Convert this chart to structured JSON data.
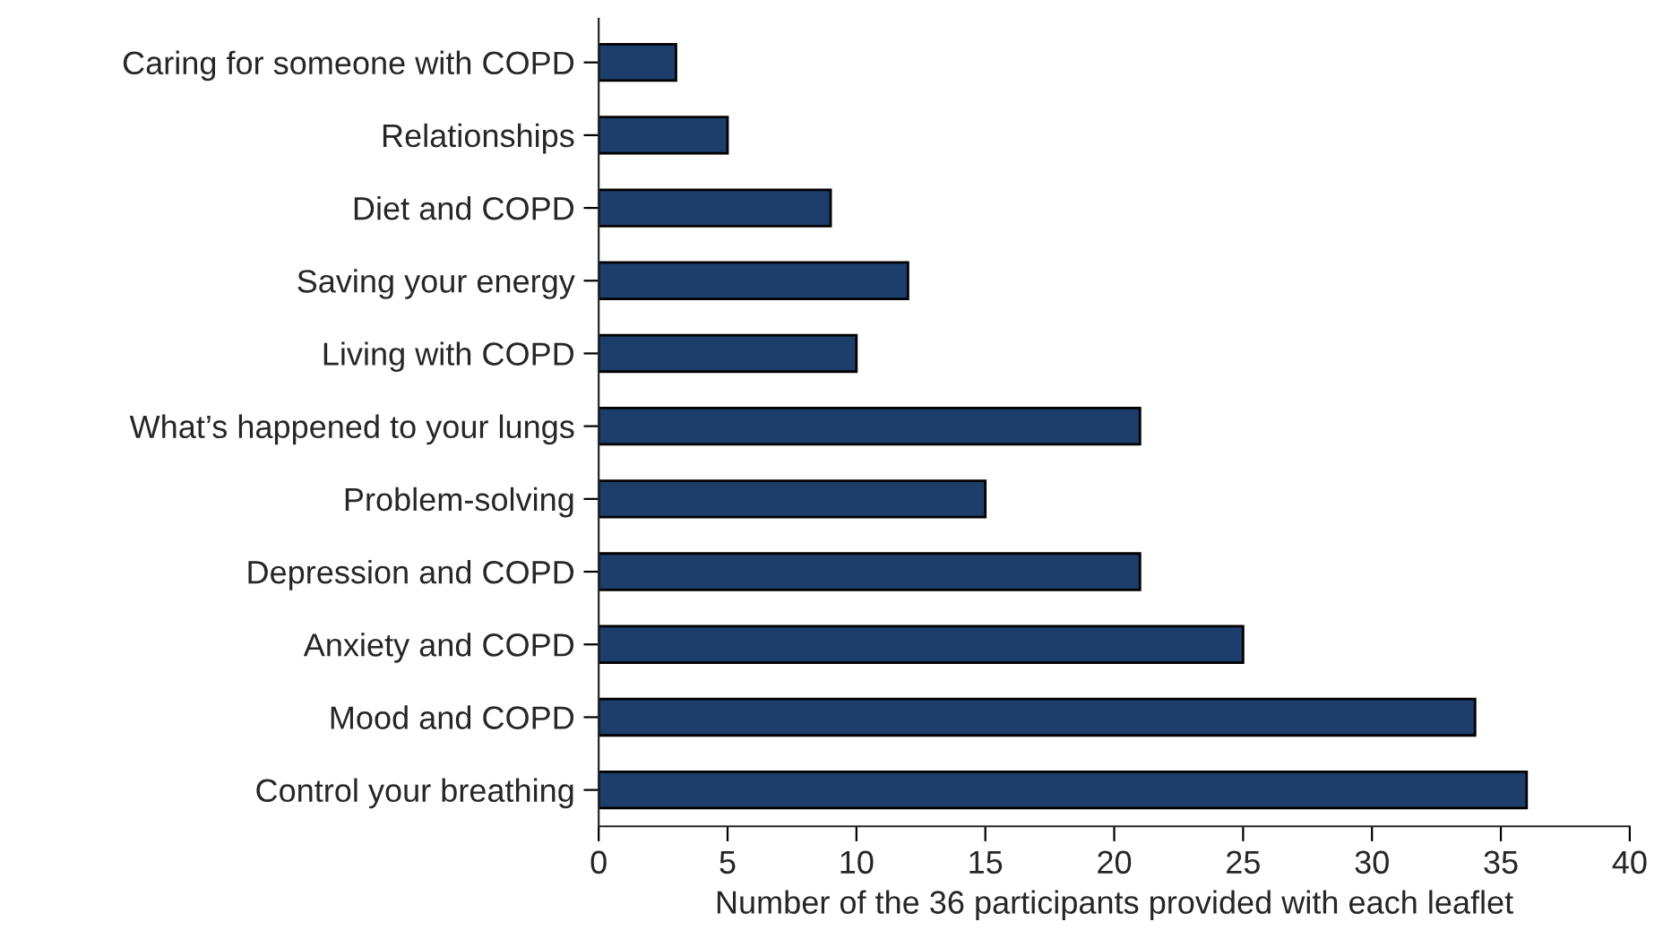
{
  "chart_data": {
    "type": "bar",
    "orientation": "horizontal",
    "xlabel": "Number of the 36 participants provided with each leaflet",
    "categories": [
      "Caring for someone with COPD",
      "Relationships",
      "Diet and COPD",
      "Saving your energy",
      "Living with COPD",
      "What’s happened to your lungs",
      "Problem-solving",
      "Depression and COPD",
      "Anxiety and COPD",
      "Mood and COPD",
      "Control your breathing"
    ],
    "values": [
      3,
      5,
      9,
      12,
      10,
      21,
      15,
      21,
      25,
      34,
      36
    ],
    "color": "#1d3d6b",
    "xlim": [
      0,
      40
    ],
    "xticks": [
      0,
      5,
      10,
      15,
      20,
      25,
      30,
      35,
      40
    ],
    "grid": false,
    "legend": false
  }
}
